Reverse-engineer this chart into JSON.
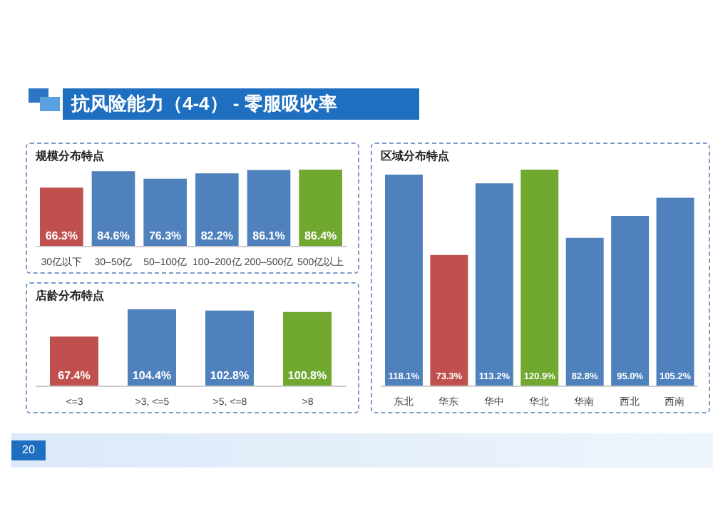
{
  "chart_data": [
    {
      "type": "bar",
      "title": "规模分布特点",
      "annotations": [
        "抗风险能力（4-4） - 零服吸收率",
        "20"
      ],
      "categories": [
        "30亿以下",
        "30–50亿",
        "50–100亿",
        "100–200亿",
        "200–500亿",
        "500亿以上"
      ],
      "values": [
        66.3,
        84.6,
        76.3,
        82.2,
        86.1,
        86.4
      ],
      "value_labels": [
        "66.3%",
        "84.6%",
        "76.3%",
        "82.2%",
        "86.1%",
        "86.4%"
      ],
      "colors": [
        "#c0504d",
        "#4f81bd",
        "#4f81bd",
        "#4f81bd",
        "#4f81bd",
        "#70a830"
      ],
      "tick_labels": "x",
      "legend": false,
      "grid": false
    },
    {
      "type": "bar",
      "title": "店龄分布特点",
      "categories": [
        "<=3",
        ">3, <=5",
        ">5, <=8",
        ">8"
      ],
      "values": [
        67.4,
        104.4,
        102.8,
        100.8
      ],
      "value_labels": [
        "67.4%",
        "104.4%",
        "102.8%",
        "100.8%"
      ],
      "colors": [
        "#c0504d",
        "#4f81bd",
        "#4f81bd",
        "#70a830"
      ],
      "tick_labels": "x",
      "legend": false,
      "grid": false
    },
    {
      "type": "bar",
      "title": "区域分布特点",
      "categories": [
        "东北",
        "华东",
        "华中",
        "华北",
        "华南",
        "西北",
        "西南"
      ],
      "values": [
        118.1,
        73.3,
        113.2,
        120.9,
        82.8,
        95.0,
        105.2
      ],
      "value_labels": [
        "118.1%",
        "73.3%",
        "113.2%",
        "120.9%",
        "82.8%",
        "95.0%",
        "105.2%"
      ],
      "colors": [
        "#4f81bd",
        "#c0504d",
        "#4f81bd",
        "#70a830",
        "#4f81bd",
        "#4f81bd",
        "#4f81bd"
      ],
      "tick_labels": "x",
      "legend": false,
      "grid": false
    }
  ]
}
